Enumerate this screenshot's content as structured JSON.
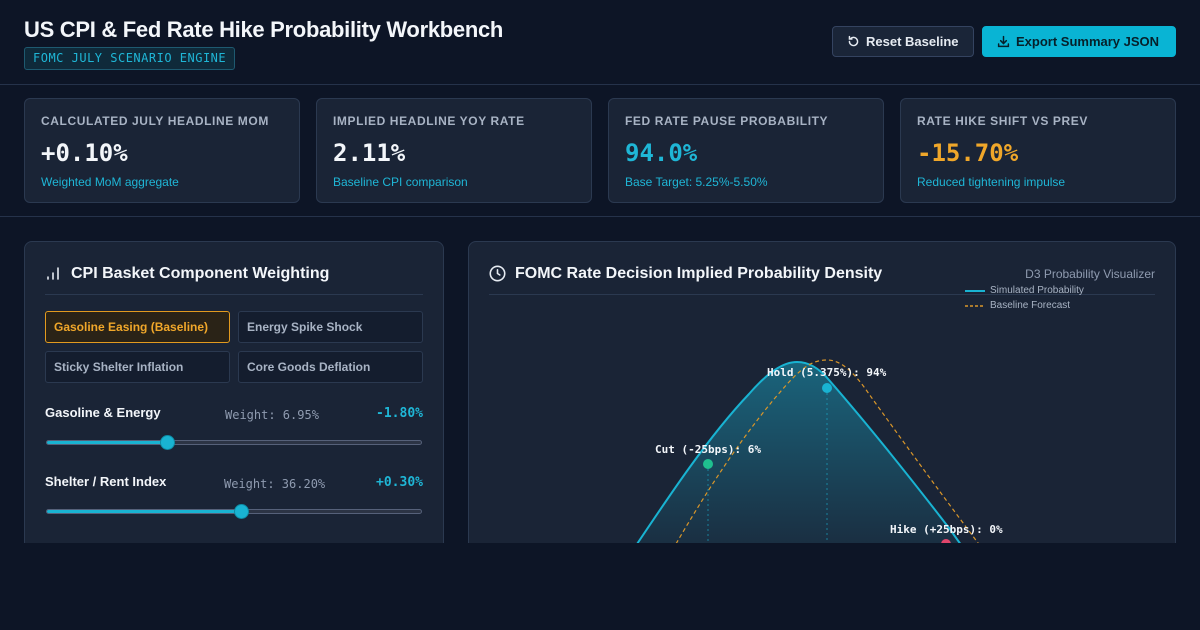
{
  "header": {
    "title": "US CPI & Fed Rate Hike Probability Workbench",
    "subtitle": "FOMC JULY SCENARIO ENGINE",
    "reset_label": "Reset Baseline",
    "export_label": "Export Summary JSON"
  },
  "kpis": [
    {
      "label": "CALCULATED JULY HEADLINE MOM",
      "value": "+0.10%",
      "sub": "Weighted MoM aggregate",
      "color": "#f3f6fa"
    },
    {
      "label": "IMPLIED HEADLINE YOY RATE",
      "value": "2.11%",
      "sub": "Baseline CPI comparison",
      "color": "#f3f6fa"
    },
    {
      "label": "FED RATE PAUSE PROBABILITY",
      "value": "94.0%",
      "sub": "Base Target: 5.25%-5.50%",
      "color": "#1fb6d6"
    },
    {
      "label": "RATE HIKE SHIFT VS PREV",
      "value": "-15.70%",
      "sub": "Reduced tightening impulse",
      "color": "#f0a72a"
    }
  ],
  "left_panel": {
    "title": "CPI Basket Component Weighting",
    "scenarios": [
      {
        "label": "Gasoline Easing (Baseline)",
        "active": true
      },
      {
        "label": "Energy Spike Shock",
        "active": false
      },
      {
        "label": "Sticky Shelter Inflation",
        "active": false
      },
      {
        "label": "Core Goods Deflation",
        "active": false
      }
    ],
    "components": [
      {
        "label": "Gasoline & Energy",
        "weight": "Weight: 6.95%",
        "value": "-1.80%",
        "position": 0.32
      },
      {
        "label": "Shelter / Rent Index",
        "weight": "Weight: 36.20%",
        "value": "+0.30%",
        "position": 0.52
      }
    ]
  },
  "right_panel": {
    "title": "FOMC Rate Decision Implied Probability Density",
    "tag": "D3 Probability Visualizer"
  },
  "chart_data": {
    "type": "area",
    "series": [
      {
        "name": "Simulated Probability",
        "color": "#19b3d2"
      },
      {
        "name": "Baseline Forecast",
        "color": "#d9962a"
      }
    ],
    "annotations": [
      {
        "label": "Cut (-25bps): 6%",
        "color": "#1fbf8f"
      },
      {
        "label": "Hold (5.375%): 94%",
        "color": "#19b3d2"
      },
      {
        "label": "Hike (+25bps): 0%",
        "color": "#e0456b"
      }
    ]
  }
}
